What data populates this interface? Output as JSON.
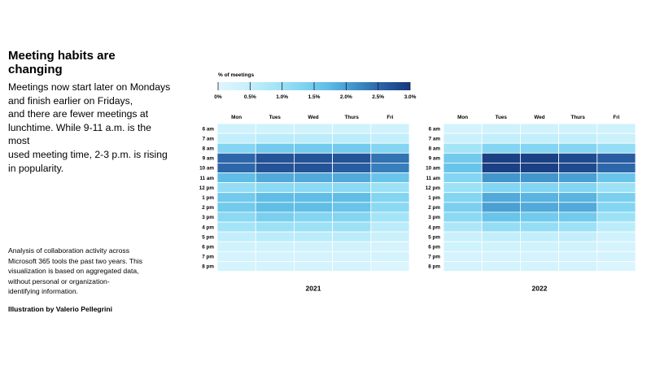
{
  "header": {
    "title": "Meeting habits are changing",
    "subtitle_lines": [
      "Meetings now start later on Mondays",
      "and finish earlier on Fridays,",
      "and there are fewer meetings at",
      "lunchtime. While 9-11 a.m. is the most",
      "used meeting time, 2-3 p.m. is rising",
      "in popularity."
    ]
  },
  "footer": {
    "note_lines": [
      "Analysis of collaboration activity across",
      "Microsoft 365 tools the past two years. This",
      "visualization is based on aggregated data,",
      "without personal or organization-",
      "identifying information."
    ],
    "credit": "Illustration by Valerio Pellegrini"
  },
  "chart_data": {
    "type": "heatmap",
    "title": "Meeting habits are changing",
    "legend": {
      "title": "% of meetings",
      "ticks": [
        0,
        0.5,
        1.0,
        1.5,
        2.0,
        2.5,
        3.0
      ],
      "tick_labels": [
        "0%",
        "0.5%",
        "1.0%",
        "1.5%",
        "2.0%",
        "2.5%",
        "3.0%"
      ],
      "colors": [
        "#dff6fd",
        "#c8f0fb",
        "#a8e6f8",
        "#84d6f2",
        "#5fbde6",
        "#3f92c8",
        "#2a5fa4",
        "#16387a"
      ]
    },
    "days": [
      "Mon",
      "Tues",
      "Wed",
      "Thurs",
      "Fri"
    ],
    "hours": [
      "6 am",
      "7 am",
      "8 am",
      "9 am",
      "10 am",
      "11 am",
      "12 pm",
      "1 pm",
      "2 pm",
      "3 pm",
      "4 pm",
      "5 pm",
      "6 pm",
      "7 pm",
      "8 pm"
    ],
    "value_range": [
      0,
      3.0
    ],
    "panels": [
      {
        "label": "2021",
        "values": [
          [
            0.3,
            0.3,
            0.3,
            0.3,
            0.3
          ],
          [
            0.5,
            0.6,
            0.6,
            0.6,
            0.5
          ],
          [
            1.3,
            1.5,
            1.5,
            1.5,
            1.3
          ],
          [
            2.5,
            2.7,
            2.7,
            2.7,
            2.4
          ],
          [
            2.5,
            2.7,
            2.7,
            2.6,
            2.3
          ],
          [
            1.7,
            1.9,
            1.9,
            1.9,
            1.6
          ],
          [
            1.1,
            1.2,
            1.2,
            1.2,
            1.0
          ],
          [
            1.5,
            1.7,
            1.7,
            1.7,
            1.3
          ],
          [
            1.5,
            1.7,
            1.7,
            1.6,
            1.2
          ],
          [
            1.2,
            1.4,
            1.3,
            1.3,
            0.9
          ],
          [
            0.9,
            1.0,
            1.0,
            1.0,
            0.6
          ],
          [
            0.5,
            0.6,
            0.6,
            0.6,
            0.4
          ],
          [
            0.3,
            0.3,
            0.3,
            0.3,
            0.2
          ],
          [
            0.2,
            0.2,
            0.2,
            0.2,
            0.2
          ],
          [
            0.2,
            0.2,
            0.2,
            0.2,
            0.1
          ]
        ]
      },
      {
        "label": "2022",
        "values": [
          [
            0.2,
            0.3,
            0.3,
            0.3,
            0.3
          ],
          [
            0.4,
            0.5,
            0.5,
            0.5,
            0.4
          ],
          [
            0.9,
            1.3,
            1.3,
            1.3,
            1.1
          ],
          [
            1.5,
            2.9,
            2.9,
            2.8,
            2.6
          ],
          [
            1.6,
            2.9,
            2.9,
            2.8,
            2.5
          ],
          [
            1.3,
            2.1,
            2.1,
            2.0,
            1.6
          ],
          [
            1.0,
            1.3,
            1.3,
            1.3,
            1.0
          ],
          [
            1.3,
            1.9,
            1.8,
            1.8,
            1.4
          ],
          [
            1.4,
            2.0,
            1.9,
            1.9,
            1.3
          ],
          [
            1.2,
            1.6,
            1.5,
            1.5,
            1.0
          ],
          [
            0.8,
            1.1,
            1.1,
            1.0,
            0.6
          ],
          [
            0.4,
            0.5,
            0.5,
            0.5,
            0.3
          ],
          [
            0.3,
            0.3,
            0.3,
            0.3,
            0.2
          ],
          [
            0.2,
            0.2,
            0.2,
            0.2,
            0.2
          ],
          [
            0.2,
            0.2,
            0.2,
            0.2,
            0.1
          ]
        ]
      }
    ]
  }
}
